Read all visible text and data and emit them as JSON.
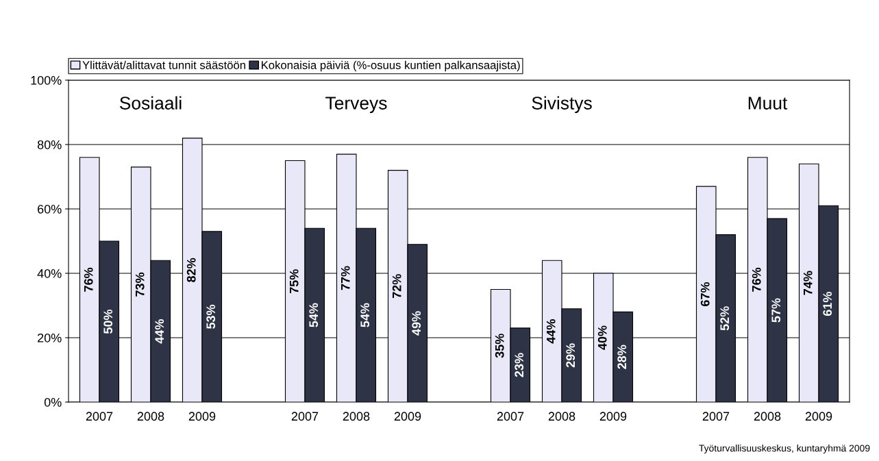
{
  "chart_data": {
    "type": "bar",
    "categories": [
      "2007",
      "2008",
      "2009",
      null,
      "2007",
      "2008",
      "2009",
      null,
      "2007",
      "2008",
      "2009",
      null,
      "2007",
      "2008",
      "2009"
    ],
    "series": [
      {
        "name": "Ylittävät/alittavat tunnit säästöön",
        "color": "#e8e8f8",
        "values": [
          76,
          73,
          82,
          null,
          75,
          77,
          72,
          null,
          35,
          44,
          40,
          null,
          67,
          76,
          74
        ],
        "value_labels": [
          "76%",
          "73%",
          "82%",
          null,
          "75%",
          "77%",
          "72%",
          null,
          "35%",
          "44%",
          "40%",
          null,
          "67%",
          "76%",
          "74%"
        ]
      },
      {
        "name": "Kokonaisia päiviä (%-osuus kuntien palkansaajista)",
        "color": "#2e3445",
        "values": [
          50,
          44,
          53,
          null,
          54,
          54,
          49,
          null,
          23,
          29,
          28,
          null,
          52,
          57,
          61
        ],
        "value_labels": [
          "50%",
          "44%",
          "53%",
          null,
          "54%",
          "54%",
          "49%",
          null,
          "23%",
          "29%",
          "28%",
          null,
          "52%",
          "57%",
          "61%"
        ]
      }
    ],
    "ylim": [
      0,
      100
    ],
    "yticks": [
      {
        "value": 0,
        "label": "0%"
      },
      {
        "value": 20,
        "label": "20%"
      },
      {
        "value": 40,
        "label": "40%"
      },
      {
        "value": 60,
        "label": "60%"
      },
      {
        "value": 80,
        "label": "80%"
      },
      {
        "value": 100,
        "label": "100%"
      }
    ],
    "grid": "y",
    "legend": "top left",
    "annotations": [
      "Sosiaali",
      "Terveys",
      "Sivistys",
      "Muut",
      "Työturvallisuuskeskus, kuntaryhmä 2009"
    ]
  }
}
